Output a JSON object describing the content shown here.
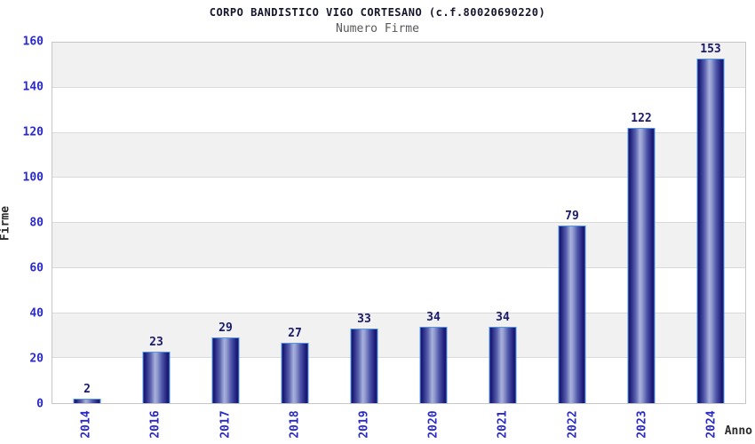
{
  "chart": {
    "title": "CORPO BANDISTICO VIGO CORTESANO (c.f.80020690220)",
    "subtitle": "Numero Firme",
    "y_axis_title": "Firme",
    "x_axis_title": "Anno"
  },
  "chart_data": {
    "type": "bar",
    "title": "CORPO BANDISTICO VIGO CORTESANO (c.f.80020690220)",
    "subtitle": "Numero Firme",
    "xlabel": "Anno",
    "ylabel": "Firme",
    "categories": [
      "2014",
      "2016",
      "2017",
      "2018",
      "2019",
      "2020",
      "2021",
      "2022",
      "2023",
      "2024"
    ],
    "values": [
      2,
      23,
      29,
      27,
      33,
      34,
      34,
      79,
      122,
      153
    ],
    "yticks": [
      0,
      20,
      40,
      60,
      80,
      100,
      120,
      140,
      160
    ],
    "ylim": [
      0,
      160
    ],
    "grid": "alternating-horizontal-bands",
    "legend_position": "none",
    "bar_labels_shown": true,
    "colors": {
      "bar_dark": "#17176f",
      "bar_highlight": "#a7afdb",
      "bar_border": "#4f97e3",
      "tick_label": "#2a2acb",
      "value_label": "#191970",
      "band_gray": "#f1f1f1",
      "grid_line": "#dadada",
      "title": "#14142b",
      "subtitle": "#595959"
    }
  }
}
